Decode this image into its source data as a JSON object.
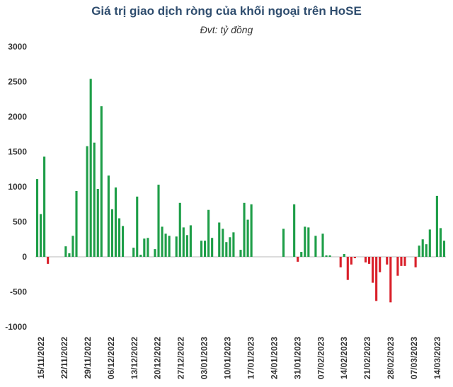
{
  "chart_data": {
    "type": "bar",
    "title": "Giá trị giao dịch ròng của khối ngoại trên HoSE",
    "subtitle": "Đvt: tỷ đồng",
    "xlabel": "",
    "ylabel": "",
    "ylim": [
      -1000,
      3000
    ],
    "yticks": [
      3000,
      2500,
      2000,
      1500,
      1000,
      500,
      0,
      -500,
      -1000
    ],
    "grid": false,
    "legend": "none",
    "colors": {
      "positive": "#1e9e48",
      "negative": "#d9202a"
    },
    "x_tick_labels": [
      "15/11/2022",
      "22/11/2022",
      "29/11/2022",
      "06/12/2022",
      "13/12/2022",
      "20/12/2022",
      "27/12/2022",
      "03/01/2023",
      "10/01/2023",
      "17/01/2023",
      "24/01/2023",
      "31/01/2023",
      "07/02/2023",
      "14/02/2023",
      "21/02/2023",
      "28/02/2023",
      "07/03/2023",
      "14/03/2023"
    ],
    "values": [
      1110,
      610,
      1430,
      -100,
      0,
      0,
      0,
      0,
      150,
      50,
      300,
      940,
      0,
      0,
      1580,
      2540,
      1630,
      970,
      2150,
      0,
      1160,
      680,
      990,
      550,
      440,
      0,
      0,
      130,
      860,
      30,
      260,
      270,
      0,
      110,
      1030,
      430,
      330,
      300,
      0,
      290,
      770,
      420,
      310,
      450,
      0,
      0,
      230,
      230,
      670,
      270,
      0,
      490,
      400,
      210,
      280,
      350,
      0,
      100,
      770,
      530,
      750,
      0,
      0,
      0,
      0,
      0,
      0,
      0,
      0,
      400,
      0,
      0,
      750,
      -70,
      70,
      430,
      420,
      0,
      300,
      0,
      330,
      20,
      20,
      0,
      0,
      -150,
      40,
      -330,
      -110,
      -20,
      0,
      0,
      -80,
      -100,
      -370,
      -630,
      -220,
      0,
      -110,
      -650,
      0,
      -270,
      -130,
      -130,
      0,
      0,
      -150,
      160,
      250,
      180,
      390,
      0,
      870,
      410,
      230
    ]
  }
}
